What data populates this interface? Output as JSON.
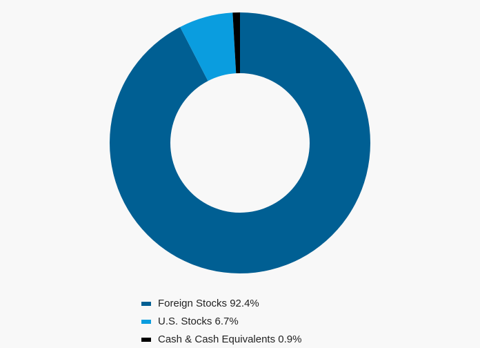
{
  "chart_data": {
    "type": "pie",
    "categories": [
      "Foreign Stocks",
      "U.S. Stocks",
      "Cash & Cash Equivalents"
    ],
    "values": [
      92.4,
      6.7,
      0.9
    ],
    "value_labels": [
      "92.4%",
      "6.7%",
      "0.9%"
    ],
    "colors": [
      "#005f93",
      "#0a9ddf",
      "#000000"
    ],
    "donut": true
  }
}
